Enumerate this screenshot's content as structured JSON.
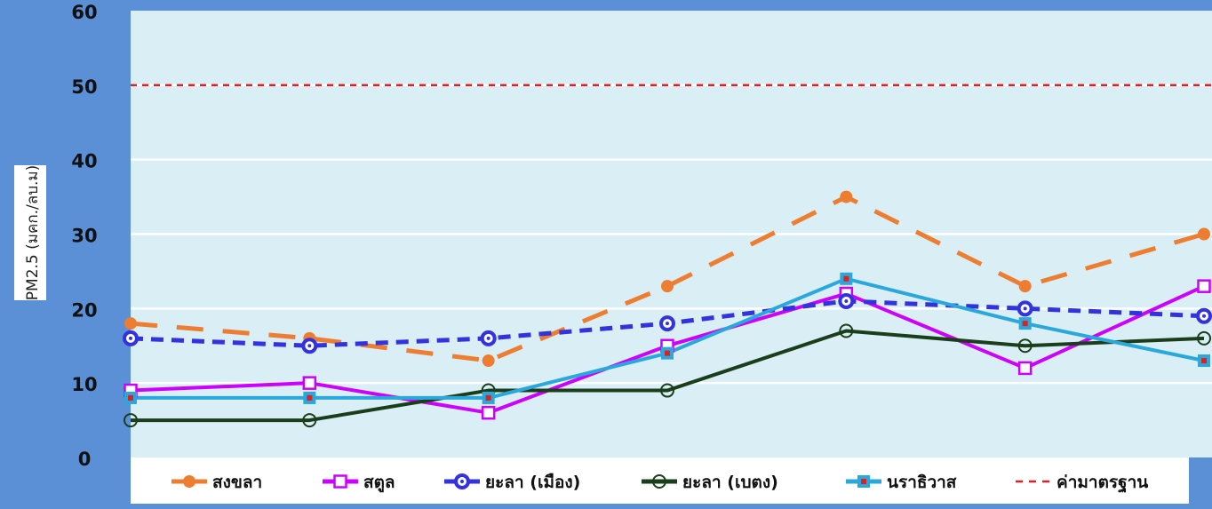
{
  "chart_data": {
    "type": "line",
    "ylabel": "PM2.5 (มคก./ลบ.ม)",
    "ylim": [
      0,
      60
    ],
    "yticks": [
      0,
      10,
      20,
      30,
      40,
      50,
      60
    ],
    "x": [
      1,
      2,
      3,
      4,
      5,
      6,
      7
    ],
    "grid": true,
    "legend_position": "bottom",
    "series": [
      {
        "name": "สงขลา",
        "values": [
          18,
          16,
          13,
          23,
          35,
          23,
          30
        ],
        "color": "#ed7d31",
        "style": "long-dash",
        "marker": "circle-filled"
      },
      {
        "name": "สตูล",
        "values": [
          9,
          10,
          6,
          15,
          22,
          12,
          23
        ],
        "color": "#cc00ff",
        "style": "solid",
        "marker": "square-open"
      },
      {
        "name": "ยะลา (เมือง)",
        "values": [
          16,
          15,
          16,
          18,
          21,
          20,
          19
        ],
        "color": "#3333dd",
        "style": "dash",
        "marker": "circle-ring"
      },
      {
        "name": "ยะลา (เบตง)",
        "values": [
          5,
          5,
          9,
          9,
          17,
          15,
          16
        ],
        "color": "#1a3d1a",
        "style": "solid",
        "marker": "circle-open"
      },
      {
        "name": "นราธิวาส",
        "values": [
          8,
          8,
          8,
          14,
          24,
          18,
          13
        ],
        "color": "#2aa8dc",
        "style": "solid",
        "marker": "square-dot"
      },
      {
        "name": "ค่ามาตรฐาน",
        "values": [
          50,
          50,
          50,
          50,
          50,
          50,
          50
        ],
        "color": "#e02020",
        "style": "short-dash",
        "marker": "none"
      }
    ]
  }
}
